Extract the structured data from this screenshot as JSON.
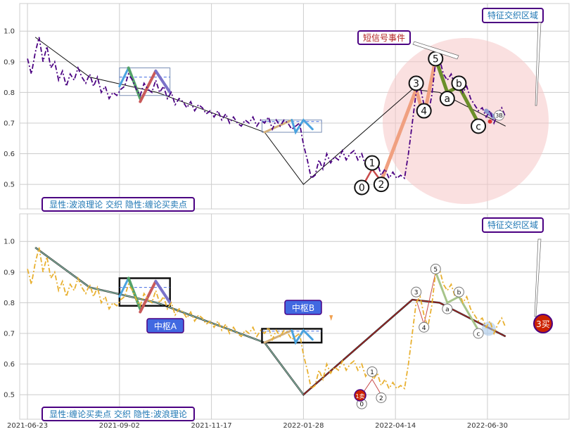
{
  "chart_data": [
    {
      "type": "line",
      "panel": "top",
      "ylim": [
        0.42,
        1.09
      ],
      "yticks": [
        0.5,
        0.6,
        0.7,
        0.8,
        0.9,
        1.0
      ],
      "ytick_labels": [
        "0.5",
        "0.6",
        "0.7",
        "0.8",
        "0.9",
        "1.0"
      ],
      "grid": true,
      "caption": "显性:波浪理论 交织 隐性:缠论买卖点",
      "series": [
        {
          "style": "dashdot",
          "color": "#4b0082",
          "values": [
            [
              0,
              0.91
            ],
            [
              3,
              0.86
            ],
            [
              6,
              0.93
            ],
            [
              9,
              0.98
            ],
            [
              12,
              0.9
            ],
            [
              15,
              0.95
            ],
            [
              18,
              0.88
            ],
            [
              21,
              0.9
            ],
            [
              24,
              0.84
            ],
            [
              27,
              0.87
            ],
            [
              30,
              0.82
            ],
            [
              33,
              0.86
            ],
            [
              36,
              0.84
            ],
            [
              39,
              0.88
            ],
            [
              42,
              0.85
            ],
            [
              45,
              0.83
            ],
            [
              48,
              0.86
            ],
            [
              51,
              0.82
            ],
            [
              54,
              0.85
            ],
            [
              57,
              0.8
            ],
            [
              60,
              0.82
            ],
            [
              63,
              0.78
            ],
            [
              66,
              0.8
            ],
            [
              69,
              0.79
            ],
            [
              72,
              0.81
            ],
            [
              75,
              0.82
            ],
            [
              78,
              0.86
            ],
            [
              81,
              0.84
            ],
            [
              84,
              0.81
            ],
            [
              87,
              0.79
            ],
            [
              90,
              0.83
            ],
            [
              93,
              0.81
            ],
            [
              96,
              0.8
            ],
            [
              99,
              0.84
            ],
            [
              102,
              0.8
            ],
            [
              105,
              0.82
            ],
            [
              108,
              0.78
            ],
            [
              111,
              0.8
            ],
            [
              114,
              0.76
            ],
            [
              117,
              0.78
            ],
            [
              120,
              0.77
            ],
            [
              123,
              0.75
            ],
            [
              126,
              0.77
            ],
            [
              129,
              0.74
            ],
            [
              132,
              0.76
            ],
            [
              135,
              0.75
            ],
            [
              138,
              0.73
            ],
            [
              141,
              0.74
            ],
            [
              144,
              0.72
            ],
            [
              147,
              0.74
            ],
            [
              150,
              0.71
            ],
            [
              153,
              0.73
            ],
            [
              156,
              0.7
            ],
            [
              159,
              0.72
            ],
            [
              162,
              0.7
            ],
            [
              165,
              0.69
            ],
            [
              168,
              0.71
            ],
            [
              171,
              0.7
            ],
            [
              174,
              0.72
            ],
            [
              177,
              0.69
            ],
            [
              180,
              0.71
            ],
            [
              183,
              0.7
            ],
            [
              186,
              0.72
            ],
            [
              189,
              0.68
            ],
            [
              192,
              0.71
            ],
            [
              195,
              0.69
            ],
            [
              198,
              0.71
            ],
            [
              201,
              0.7
            ],
            [
              204,
              0.68
            ],
            [
              207,
              0.69
            ],
            [
              210,
              0.7
            ],
            [
              213,
              0.63
            ],
            [
              216,
              0.58
            ],
            [
              219,
              0.52
            ],
            [
              222,
              0.53
            ],
            [
              225,
              0.58
            ],
            [
              228,
              0.55
            ],
            [
              231,
              0.6
            ],
            [
              234,
              0.57
            ],
            [
              237,
              0.59
            ],
            [
              240,
              0.58
            ],
            [
              243,
              0.61
            ],
            [
              246,
              0.58
            ],
            [
              249,
              0.6
            ],
            [
              252,
              0.61
            ],
            [
              255,
              0.58
            ],
            [
              258,
              0.6
            ],
            [
              261,
              0.56
            ],
            [
              264,
              0.58
            ],
            [
              267,
              0.55
            ],
            [
              270,
              0.57
            ],
            [
              273,
              0.53
            ],
            [
              276,
              0.55
            ],
            [
              279,
              0.52
            ],
            [
              282,
              0.54
            ],
            [
              285,
              0.52
            ],
            [
              288,
              0.53
            ],
            [
              291,
              0.52
            ],
            [
              294,
              0.6
            ],
            [
              297,
              0.7
            ],
            [
              300,
              0.8
            ],
            [
              303,
              0.82
            ],
            [
              306,
              0.76
            ],
            [
              309,
              0.72
            ],
            [
              312,
              0.79
            ],
            [
              315,
              0.9
            ],
            [
              318,
              0.91
            ],
            [
              321,
              0.86
            ],
            [
              324,
              0.84
            ],
            [
              327,
              0.86
            ],
            [
              330,
              0.82
            ],
            [
              333,
              0.84
            ],
            [
              336,
              0.8
            ],
            [
              339,
              0.82
            ],
            [
              342,
              0.78
            ],
            [
              345,
              0.76
            ],
            [
              348,
              0.74
            ],
            [
              351,
              0.75
            ],
            [
              354,
              0.72
            ],
            [
              357,
              0.74
            ],
            [
              360,
              0.7
            ],
            [
              363,
              0.73
            ],
            [
              366,
              0.75
            ],
            [
              369,
              0.72
            ]
          ]
        }
      ],
      "wave_labels": [
        "0",
        "1",
        "2",
        "3",
        "4",
        "5",
        "a",
        "b",
        "c",
        "3B"
      ],
      "annotations": [
        "特征交织区域",
        "短信号事件"
      ]
    },
    {
      "type": "line",
      "panel": "bottom",
      "ylim": [
        0.42,
        1.09
      ],
      "yticks": [
        0.5,
        0.6,
        0.7,
        0.8,
        0.9,
        1.0
      ],
      "ytick_labels": [
        "0.5",
        "0.6",
        "0.7",
        "0.8",
        "0.9",
        "1.0"
      ],
      "xticks": [
        0,
        71,
        142,
        213,
        284,
        355
      ],
      "xtick_labels": [
        "2021-06-23",
        "2021-09-02",
        "2021-11-17",
        "2022-01-28",
        "2022-04-14",
        "2022-06-30"
      ],
      "xlim": [
        -6,
        418
      ],
      "grid": true,
      "caption": "显性:缠论买卖点 交织 隐性:波浪理论",
      "series": [
        {
          "style": "dashdot",
          "color": "#e8b030",
          "values": [
            [
              0,
              0.91
            ],
            [
              3,
              0.86
            ],
            [
              6,
              0.93
            ],
            [
              9,
              0.98
            ],
            [
              12,
              0.9
            ],
            [
              15,
              0.95
            ],
            [
              18,
              0.88
            ],
            [
              21,
              0.9
            ],
            [
              24,
              0.84
            ],
            [
              27,
              0.87
            ],
            [
              30,
              0.82
            ],
            [
              33,
              0.86
            ],
            [
              36,
              0.84
            ],
            [
              39,
              0.88
            ],
            [
              42,
              0.85
            ],
            [
              45,
              0.83
            ],
            [
              48,
              0.86
            ],
            [
              51,
              0.82
            ],
            [
              54,
              0.85
            ],
            [
              57,
              0.8
            ],
            [
              60,
              0.82
            ],
            [
              63,
              0.78
            ],
            [
              66,
              0.8
            ],
            [
              69,
              0.79
            ],
            [
              72,
              0.81
            ],
            [
              75,
              0.82
            ],
            [
              78,
              0.86
            ],
            [
              81,
              0.84
            ],
            [
              84,
              0.81
            ],
            [
              87,
              0.79
            ],
            [
              90,
              0.83
            ],
            [
              93,
              0.81
            ],
            [
              96,
              0.8
            ],
            [
              99,
              0.84
            ],
            [
              102,
              0.8
            ],
            [
              105,
              0.82
            ],
            [
              108,
              0.78
            ],
            [
              111,
              0.8
            ],
            [
              114,
              0.76
            ],
            [
              117,
              0.78
            ],
            [
              120,
              0.77
            ],
            [
              123,
              0.75
            ],
            [
              126,
              0.77
            ],
            [
              129,
              0.74
            ],
            [
              132,
              0.76
            ],
            [
              135,
              0.75
            ],
            [
              138,
              0.73
            ],
            [
              141,
              0.74
            ],
            [
              144,
              0.72
            ],
            [
              147,
              0.74
            ],
            [
              150,
              0.71
            ],
            [
              153,
              0.73
            ],
            [
              156,
              0.7
            ],
            [
              159,
              0.72
            ],
            [
              162,
              0.7
            ],
            [
              165,
              0.69
            ],
            [
              168,
              0.71
            ],
            [
              171,
              0.7
            ],
            [
              174,
              0.72
            ],
            [
              177,
              0.69
            ],
            [
              180,
              0.71
            ],
            [
              183,
              0.7
            ],
            [
              186,
              0.72
            ],
            [
              189,
              0.68
            ],
            [
              192,
              0.71
            ],
            [
              195,
              0.69
            ],
            [
              198,
              0.71
            ],
            [
              201,
              0.7
            ],
            [
              204,
              0.68
            ],
            [
              207,
              0.69
            ],
            [
              210,
              0.7
            ],
            [
              213,
              0.63
            ],
            [
              216,
              0.58
            ],
            [
              219,
              0.52
            ],
            [
              222,
              0.53
            ],
            [
              225,
              0.58
            ],
            [
              228,
              0.55
            ],
            [
              231,
              0.6
            ],
            [
              234,
              0.57
            ],
            [
              237,
              0.59
            ],
            [
              240,
              0.58
            ],
            [
              243,
              0.61
            ],
            [
              246,
              0.58
            ],
            [
              249,
              0.6
            ],
            [
              252,
              0.61
            ],
            [
              255,
              0.58
            ],
            [
              258,
              0.6
            ],
            [
              261,
              0.56
            ],
            [
              264,
              0.58
            ],
            [
              267,
              0.55
            ],
            [
              270,
              0.57
            ],
            [
              273,
              0.53
            ],
            [
              276,
              0.55
            ],
            [
              279,
              0.52
            ],
            [
              282,
              0.54
            ],
            [
              285,
              0.52
            ],
            [
              288,
              0.53
            ],
            [
              291,
              0.52
            ],
            [
              294,
              0.6
            ],
            [
              297,
              0.7
            ],
            [
              300,
              0.8
            ],
            [
              303,
              0.82
            ],
            [
              306,
              0.76
            ],
            [
              309,
              0.72
            ],
            [
              312,
              0.79
            ],
            [
              315,
              0.9
            ],
            [
              318,
              0.91
            ],
            [
              321,
              0.86
            ],
            [
              324,
              0.84
            ],
            [
              327,
              0.86
            ],
            [
              330,
              0.82
            ],
            [
              333,
              0.84
            ],
            [
              336,
              0.8
            ],
            [
              339,
              0.82
            ],
            [
              342,
              0.78
            ],
            [
              345,
              0.76
            ],
            [
              348,
              0.74
            ],
            [
              351,
              0.75
            ],
            [
              354,
              0.72
            ],
            [
              357,
              0.74
            ],
            [
              360,
              0.7
            ],
            [
              363,
              0.73
            ],
            [
              366,
              0.75
            ],
            [
              369,
              0.72
            ]
          ]
        }
      ],
      "pivot_labels": [
        "中枢A",
        "中枢B"
      ],
      "signal_labels": [
        "1卖",
        "3买"
      ],
      "wave_labels": [
        "0",
        "1",
        "2",
        "3",
        "4",
        "5",
        "a",
        "b",
        "c"
      ],
      "annotations": [
        "特征交织区域"
      ]
    }
  ],
  "colors": {
    "grid": "#cccccc",
    "caption_text": "#1f77b4",
    "caption_border": "#4b0082",
    "callout_text": "#b22222",
    "circle_fill": "#f5c6c6",
    "sell_marker": "#cc2200"
  }
}
